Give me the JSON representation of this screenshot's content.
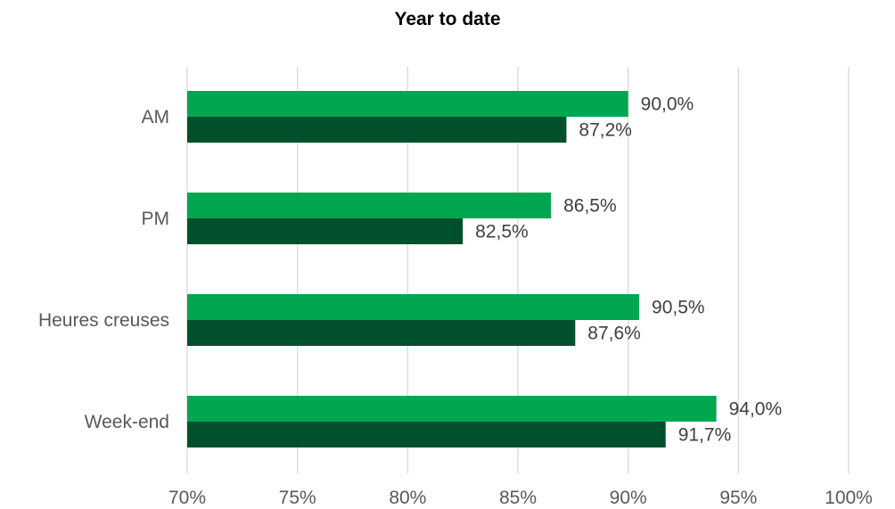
{
  "chart_data": {
    "type": "bar",
    "orientation": "horizontal",
    "title": "Year to date",
    "xlabel": "",
    "ylabel": "",
    "xlim": [
      0.7,
      1.0
    ],
    "x_ticks": [
      0.7,
      0.75,
      0.8,
      0.85,
      0.9,
      0.95,
      1.0
    ],
    "x_tick_labels": [
      "70%",
      "75%",
      "80%",
      "85%",
      "90%",
      "95%",
      "100%"
    ],
    "grid": "vertical",
    "legend": "none",
    "categories": [
      "AM",
      "PM",
      "Heures creuses",
      "Week-end"
    ],
    "series": [
      {
        "color": "#00A650",
        "values": [
          0.9,
          0.865,
          0.905,
          0.94
        ],
        "labels": [
          "90,0%",
          "86,5%",
          "90,5%",
          "94,0%"
        ]
      },
      {
        "color": "#00502B",
        "values": [
          0.872,
          0.825,
          0.876,
          0.917
        ],
        "labels": [
          "87,2%",
          "82,5%",
          "87,6%",
          "91,7%"
        ]
      }
    ],
    "colors": {
      "gridline": "#D9D9D9",
      "axis_text": "#595959",
      "data_label": "#404040"
    }
  }
}
